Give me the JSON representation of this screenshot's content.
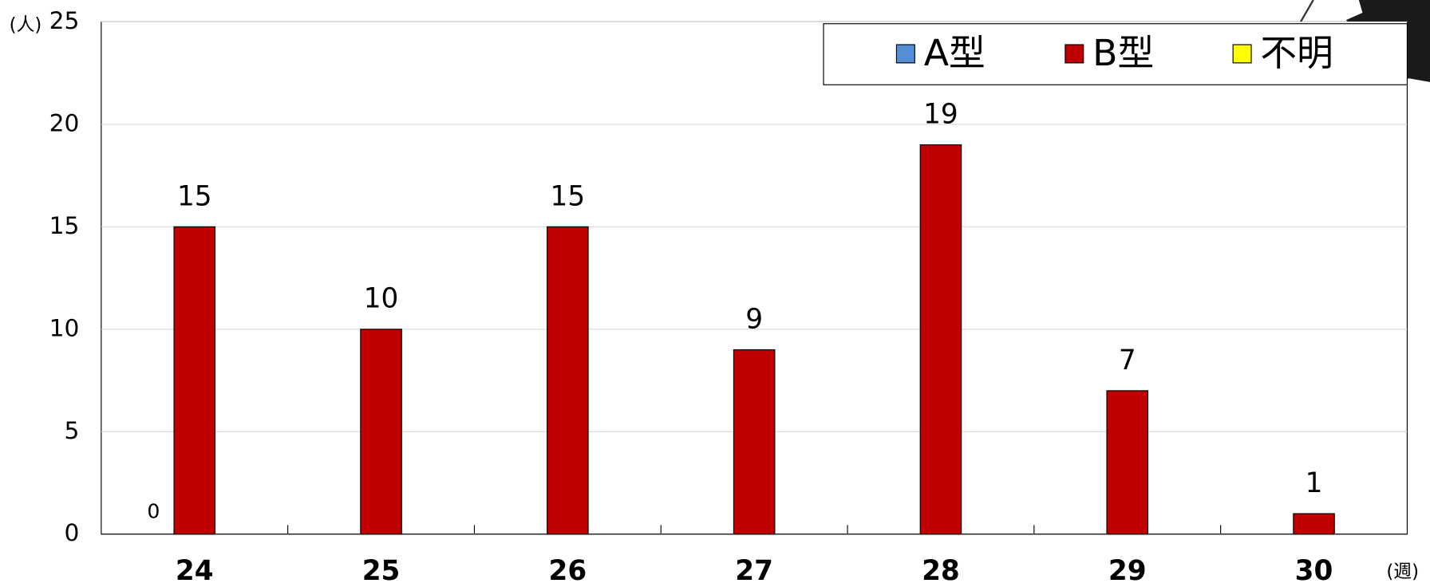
{
  "chart_data": {
    "type": "bar",
    "y_unit": "(人)",
    "x_unit": "(週)",
    "categories": [
      "24",
      "25",
      "26",
      "27",
      "28",
      "29",
      "30"
    ],
    "series": [
      {
        "name": "A型",
        "color": "#558ed5",
        "values": [
          0,
          null,
          null,
          null,
          null,
          null,
          null
        ]
      },
      {
        "name": "B型",
        "color": "#c00000",
        "values": [
          15,
          10,
          15,
          9,
          19,
          7,
          1
        ]
      },
      {
        "name": "不明",
        "color": "#ffff00",
        "values": [
          null,
          null,
          null,
          null,
          null,
          null,
          null
        ]
      }
    ],
    "ylim": [
      0,
      25
    ],
    "yticks": [
      0,
      5,
      10,
      15,
      20,
      25
    ],
    "grid": true,
    "legend": "top-right"
  }
}
